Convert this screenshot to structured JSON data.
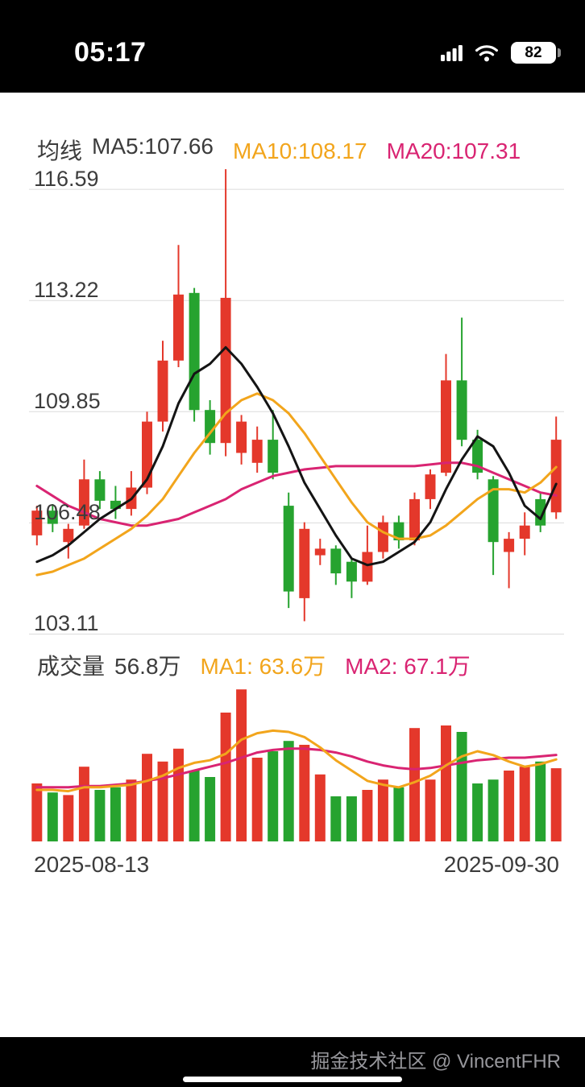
{
  "status_bar": {
    "time": "05:17",
    "battery_level": "82"
  },
  "price_chart": {
    "header": {
      "title": "均线",
      "ma5": "MA5:107.66",
      "ma10": "MA10:108.17",
      "ma20": "MA20:107.31"
    },
    "y_labels": [
      "116.59",
      "113.22",
      "109.85",
      "106.48",
      "103.11"
    ]
  },
  "volume_chart": {
    "header": {
      "title": "成交量",
      "value": "56.8万",
      "ma1": "MA1: 63.6万",
      "ma2": "MA2: 67.1万"
    }
  },
  "x_axis": {
    "start_date": "2025-08-13",
    "end_date": "2025-09-30"
  },
  "watermark": "掘金技术社区 @ VincentFHR",
  "colors": {
    "up": "#e4382b",
    "down": "#26a32f",
    "ma5": "#141414",
    "ma10": "#f2a51c",
    "ma20": "#d92472",
    "grid": "#dcdcdc",
    "axis_text": "#3c3c3c"
  },
  "chart_data": {
    "type": "candlestick",
    "title": "K线图 (均线 + 成交量)",
    "x_start": "2025-08-13",
    "x_end": "2025-09-30",
    "price_range": [
      103.0,
      117.3
    ],
    "y_gridlines": [
      116.59,
      113.22,
      109.85,
      106.48,
      103.11
    ],
    "volume_max": 125,
    "volume_unit": "万",
    "legend_values": {
      "ma5": 107.66,
      "ma10": 108.17,
      "ma20": 107.31,
      "volume": 56.8,
      "vol_ma1": 63.6,
      "vol_ma2": 67.1
    },
    "ohlcv_columns": [
      "open",
      "high",
      "low",
      "close",
      "volume"
    ],
    "ohlcv": [
      [
        106.1,
        107.0,
        105.8,
        106.85,
        45
      ],
      [
        106.85,
        107.05,
        106.2,
        106.45,
        38
      ],
      [
        105.9,
        106.45,
        105.4,
        106.3,
        36
      ],
      [
        106.4,
        108.4,
        106.3,
        107.8,
        58
      ],
      [
        107.8,
        108.05,
        106.9,
        107.15,
        40
      ],
      [
        107.15,
        107.6,
        106.6,
        106.9,
        42
      ],
      [
        106.9,
        108.05,
        106.7,
        107.55,
        48
      ],
      [
        107.55,
        109.85,
        107.35,
        109.55,
        68
      ],
      [
        109.55,
        112.0,
        109.25,
        111.4,
        62
      ],
      [
        111.4,
        114.9,
        111.2,
        113.4,
        72
      ],
      [
        113.45,
        113.6,
        109.55,
        109.9,
        55
      ],
      [
        109.9,
        110.2,
        108.55,
        108.9,
        50
      ],
      [
        108.9,
        117.2,
        108.5,
        113.3,
        100
      ],
      [
        108.6,
        109.75,
        108.25,
        109.55,
        118
      ],
      [
        108.3,
        109.4,
        108.0,
        109.0,
        65
      ],
      [
        109.0,
        109.9,
        107.8,
        108.0,
        70
      ],
      [
        107.0,
        107.4,
        103.9,
        104.4,
        78
      ],
      [
        104.2,
        106.5,
        103.5,
        106.3,
        75
      ],
      [
        105.5,
        106.0,
        105.2,
        105.7,
        52
      ],
      [
        105.7,
        105.8,
        104.6,
        104.95,
        35
      ],
      [
        105.3,
        105.4,
        104.2,
        104.7,
        35
      ],
      [
        104.7,
        106.4,
        104.6,
        105.6,
        40
      ],
      [
        105.6,
        106.7,
        105.4,
        106.5,
        48
      ],
      [
        106.5,
        106.7,
        105.7,
        105.95,
        42
      ],
      [
        105.95,
        107.4,
        105.8,
        107.2,
        88
      ],
      [
        107.2,
        108.1,
        106.9,
        107.95,
        48
      ],
      [
        108.0,
        111.6,
        107.9,
        110.8,
        90
      ],
      [
        110.8,
        112.7,
        108.8,
        109.0,
        85
      ],
      [
        109.0,
        109.3,
        107.8,
        108.0,
        45
      ],
      [
        107.8,
        107.9,
        104.9,
        105.9,
        48
      ],
      [
        105.6,
        106.2,
        104.5,
        106.0,
        55
      ],
      [
        106.0,
        106.8,
        105.5,
        106.4,
        58
      ],
      [
        107.2,
        107.4,
        106.2,
        106.4,
        62
      ],
      [
        106.8,
        109.7,
        106.6,
        109.0,
        56.8
      ]
    ],
    "ma5": [
      105.3,
      105.5,
      105.8,
      106.2,
      106.6,
      106.9,
      107.2,
      107.8,
      108.8,
      110.1,
      111.0,
      111.3,
      111.8,
      111.3,
      110.6,
      109.8,
      108.8,
      107.7,
      106.9,
      106.1,
      105.4,
      105.2,
      105.3,
      105.6,
      105.9,
      106.5,
      107.5,
      108.4,
      109.1,
      108.8,
      108.0,
      107.0,
      106.6,
      107.66
    ],
    "ma10": [
      104.9,
      105.0,
      105.2,
      105.4,
      105.7,
      106.0,
      106.3,
      106.7,
      107.2,
      107.9,
      108.6,
      109.2,
      109.8,
      110.2,
      110.4,
      110.2,
      109.8,
      109.2,
      108.5,
      107.8,
      107.1,
      106.5,
      106.2,
      106.0,
      106.0,
      106.1,
      106.4,
      106.8,
      107.2,
      107.5,
      107.5,
      107.4,
      107.7,
      108.17
    ],
    "ma20": [
      107.6,
      107.3,
      107.0,
      106.8,
      106.6,
      106.5,
      106.4,
      106.4,
      106.5,
      106.6,
      106.8,
      107.0,
      107.2,
      107.5,
      107.7,
      107.9,
      108.0,
      108.1,
      108.15,
      108.2,
      108.2,
      108.2,
      108.2,
      108.2,
      108.2,
      108.25,
      108.3,
      108.3,
      108.2,
      108.0,
      107.8,
      107.6,
      107.4,
      107.31
    ],
    "vol_ma1": [
      40,
      40,
      39,
      42,
      42,
      43,
      44,
      47,
      51,
      57,
      61,
      63,
      68,
      79,
      84,
      86,
      85,
      81,
      73,
      63,
      55,
      47,
      44,
      42,
      46,
      51,
      59,
      66,
      70,
      67,
      62,
      58,
      60,
      63.6
    ],
    "vol_ma2": [
      42,
      42,
      42,
      43,
      43,
      44,
      45,
      47,
      49,
      52,
      55,
      58,
      61,
      65,
      69,
      71,
      72,
      72,
      71,
      69,
      66,
      62,
      59,
      57,
      56,
      57,
      59,
      61,
      63,
      64,
      65,
      65,
      66,
      67.1
    ]
  }
}
